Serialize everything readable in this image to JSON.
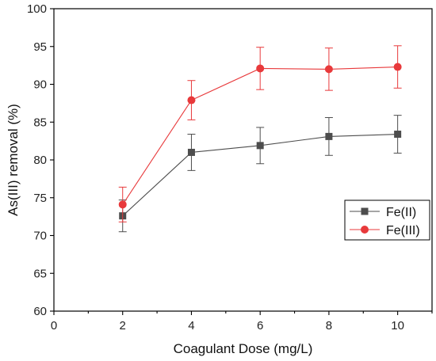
{
  "chart_data": {
    "type": "line",
    "title": "",
    "xlabel": "Coagulant Dose (mg/L)",
    "ylabel": "As(III) removal (%)",
    "xlim": [
      0,
      11
    ],
    "ylim": [
      60,
      100
    ],
    "xticks": [
      0,
      2,
      4,
      6,
      8,
      10
    ],
    "yticks": [
      60,
      65,
      70,
      75,
      80,
      85,
      90,
      95,
      100
    ],
    "x": [
      2,
      4,
      6,
      8,
      10
    ],
    "series": [
      {
        "name": "Fe(II)",
        "color": "#4d4d4d",
        "marker": "square",
        "values": [
          72.6,
          81.0,
          81.9,
          83.1,
          83.4
        ],
        "errors": [
          2.1,
          2.4,
          2.4,
          2.5,
          2.5
        ]
      },
      {
        "name": "Fe(III)",
        "color": "#e8393b",
        "marker": "circle",
        "values": [
          74.1,
          87.9,
          92.1,
          92.0,
          92.3
        ],
        "errors": [
          2.3,
          2.6,
          2.8,
          2.8,
          2.8
        ]
      }
    ],
    "legend": {
      "placement": "right"
    },
    "grid": false
  }
}
